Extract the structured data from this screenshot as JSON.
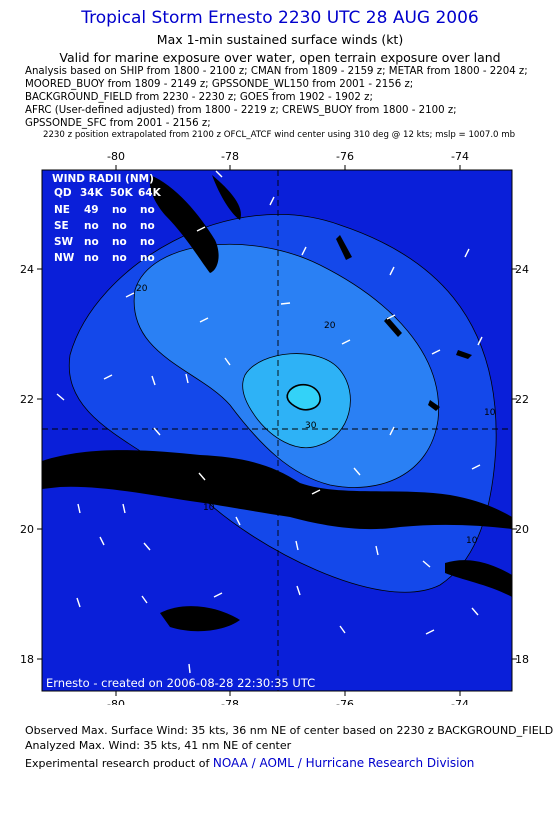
{
  "header": {
    "title": "Tropical Storm Ernesto 2230 UTC 28 AUG 2006",
    "subtitle": "Max 1-min sustained surface winds (kt)",
    "validity": "Valid for marine exposure over water, open terrain exposure over land"
  },
  "sources": [
    "Analysis based on  SHIP from 1800 - 2100 z;  CMAN from 1809 - 2159 z;  METAR from 1800 - 2204 z;",
    "MOORED_BUOY from 1809 - 2149 z;  GPSSONDE_WL150 from 2001 - 2156 z;",
    "BACKGROUND_FIELD from 2230 - 2230 z;  GOES from 1902 - 1902 z;",
    "AFRC (User-defined adjusted) from 1800 - 2219 z;  CREWS_BUOY from 1800 - 2100 z;",
    "GPSSONDE_SFC from 2001 - 2156 z;"
  ],
  "position_note": "2230 z position extrapolated from 2100 z OFCL_ATCF wind center using 310 deg @ 12 kts;  mslp = 1007.0 mb",
  "map": {
    "x_ticks": [
      "-80",
      "-78",
      "-76",
      "-74"
    ],
    "y_ticks": [
      "24",
      "22",
      "20",
      "18"
    ],
    "contour_labels": [
      "20",
      "20",
      "30",
      "10",
      "10",
      "10"
    ],
    "credit": "Ernesto - created on 2006-08-28 22:30:35 UTC",
    "wind_radii": {
      "title": "WIND RADII (NM)",
      "header": [
        "QD",
        "34K",
        "50K",
        "64K"
      ],
      "rows": [
        [
          "NE",
          "49",
          "no",
          "no"
        ],
        [
          "SE",
          "no",
          "no",
          "no"
        ],
        [
          "SW",
          "no",
          "no",
          "no"
        ],
        [
          "NW",
          "no",
          "no",
          "no"
        ]
      ]
    },
    "colors": {
      "frame": "#000000",
      "level_outer": "#0a1fd9",
      "level_10": "#1448ea",
      "level_20": "#2a80f4",
      "level_30": "#2eb2f6",
      "level_core": "#33d2f8",
      "land": "#000000",
      "wind_barb": "#ffffff"
    }
  },
  "footer": {
    "observed": "Observed Max. Surface Wind: 35 kts, 36 nm NE of center based on 2230 z BACKGROUND_FIELD",
    "analyzed": "Analyzed Max. Wind: 35 kts, 41 nm NE of center",
    "credit_prefix": "Experimental research product of ",
    "credit_link": "NOAA / AOML / Hurricane Research Division"
  }
}
